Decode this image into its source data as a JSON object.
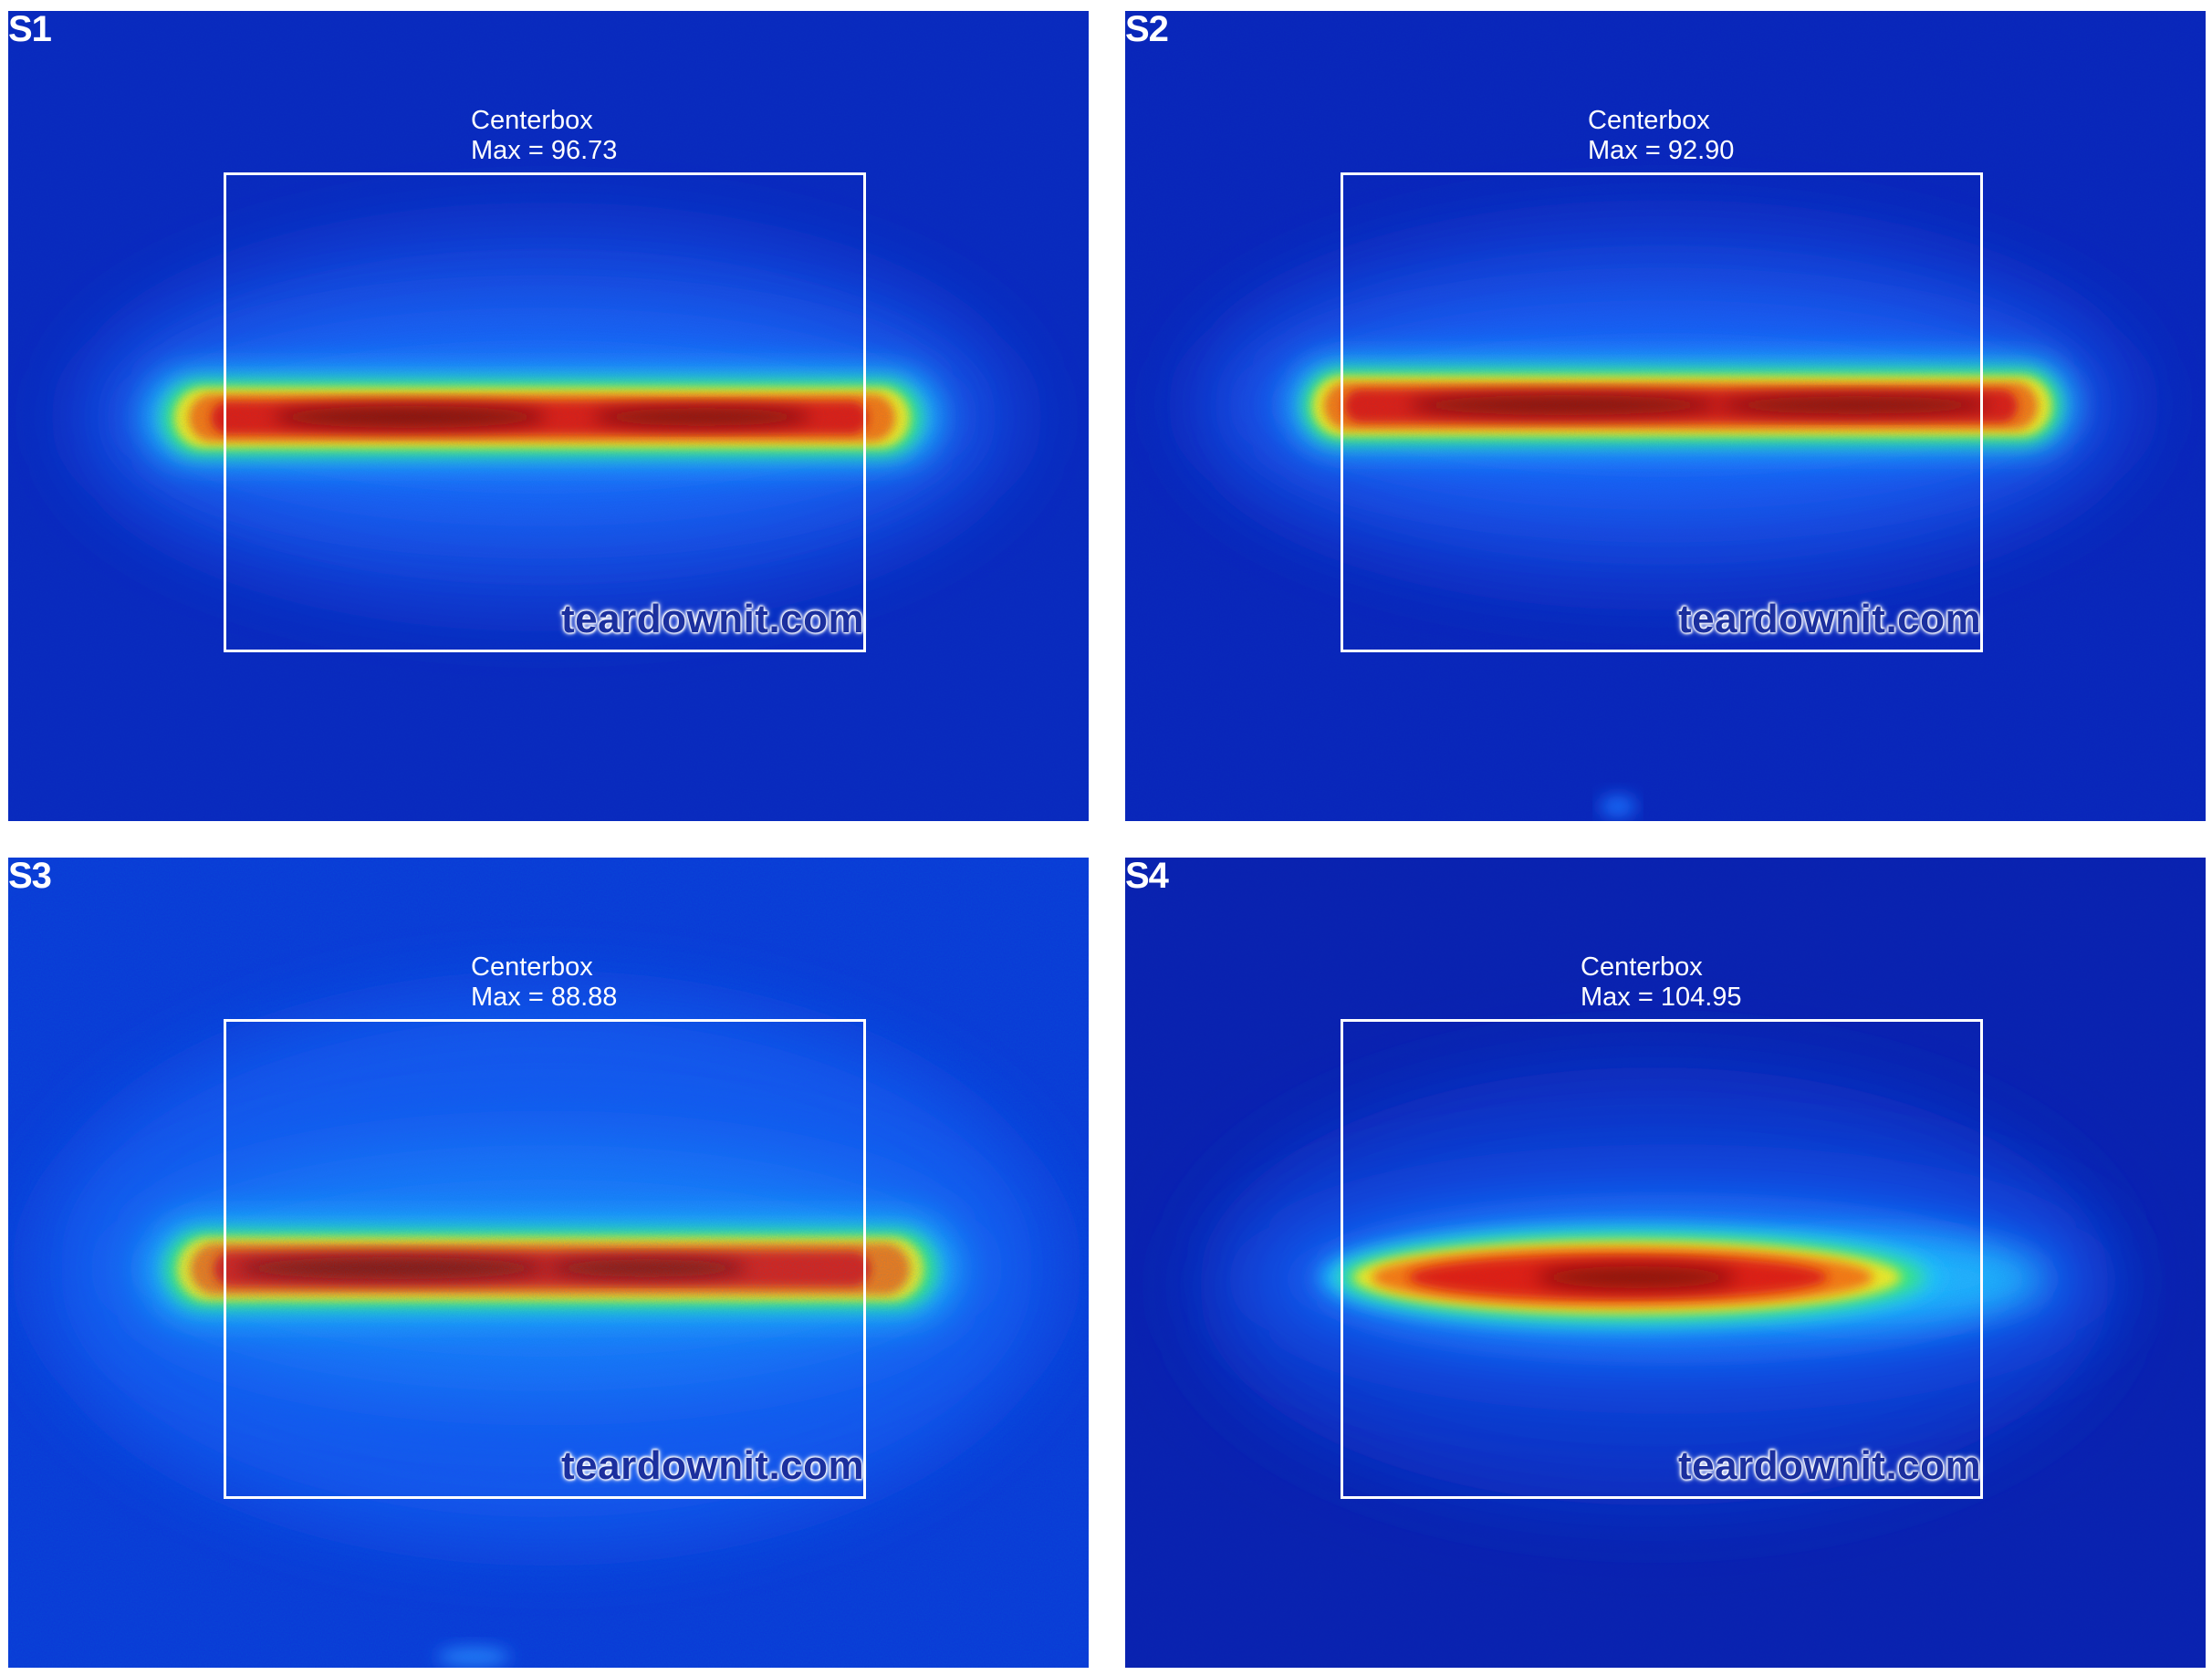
{
  "panels": [
    {
      "id": "S1",
      "roi_name": "Centerbox",
      "roi_max": "Max = 96.73",
      "watermark": "teardownit.com",
      "background_color": "#0a26c0"
    },
    {
      "id": "S2",
      "roi_name": "Centerbox",
      "roi_max": "Max = 92.90",
      "watermark": "teardownit.com",
      "background_color": "#0a22bc"
    },
    {
      "id": "S3",
      "roi_name": "Centerbox",
      "roi_max": "Max = 88.88",
      "watermark": "teardownit.com",
      "background_color": "#0b34d8"
    },
    {
      "id": "S4",
      "roi_name": "Centerbox",
      "roi_max": "Max = 104.95",
      "watermark": "teardownit.com",
      "background_color": "#0a1fb0"
    }
  ],
  "colormap": [
    "#0a1fb0",
    "#1a5cff",
    "#21c8ff",
    "#3cf07a",
    "#f5ee20",
    "#ff7a10",
    "#e81a0a",
    "#7a0a06"
  ]
}
